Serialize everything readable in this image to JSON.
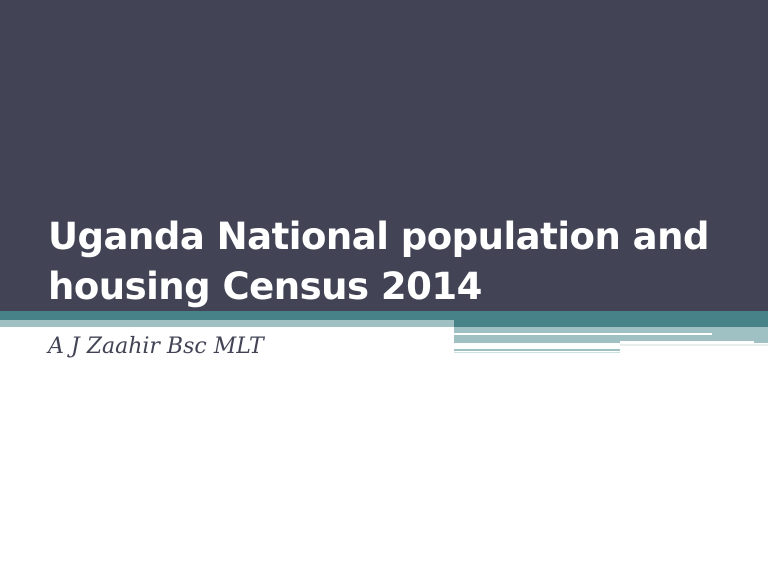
{
  "slide": {
    "title": "Uganda National population and housing Census 2014",
    "subtitle": "A J Zaahir Bsc MLT"
  },
  "colors": {
    "background_dark": "#424456",
    "accent_teal": "#468287",
    "accent_light": "#a0c1c3"
  }
}
